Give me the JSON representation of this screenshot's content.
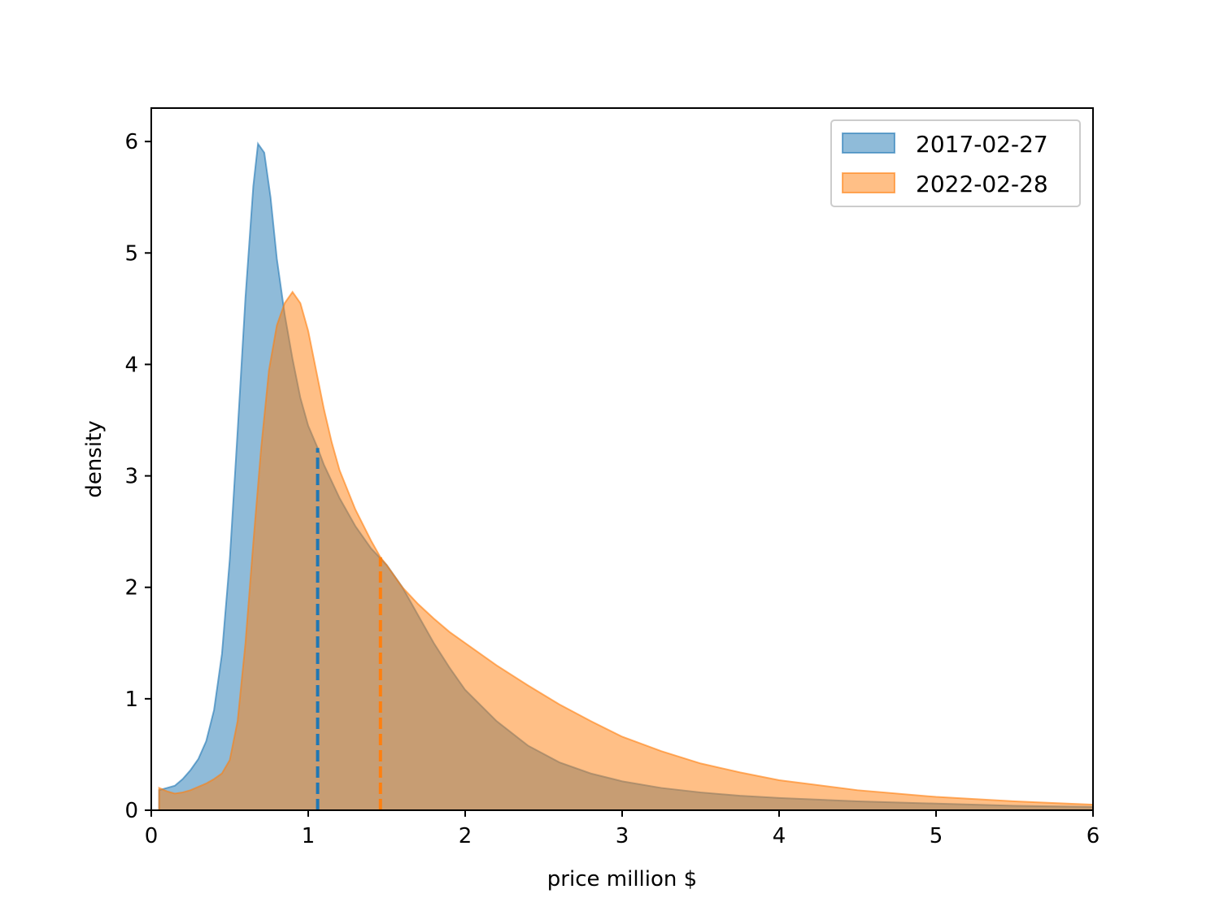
{
  "chart_data": {
    "type": "area",
    "title": "",
    "xlabel": "price million $",
    "ylabel": "density",
    "xlim": [
      0,
      6
    ],
    "ylim": [
      0,
      6.3
    ],
    "x_ticks": [
      0,
      1,
      2,
      3,
      4,
      5,
      6
    ],
    "y_ticks": [
      0,
      1,
      2,
      3,
      4,
      5,
      6
    ],
    "grid": false,
    "legend_position": "top-right",
    "series": [
      {
        "name": "2017-02-27",
        "color": "#1f77b4",
        "fill_alpha": 0.5,
        "points": [
          [
            0.05,
            0.18
          ],
          [
            0.1,
            0.2
          ],
          [
            0.15,
            0.22
          ],
          [
            0.2,
            0.28
          ],
          [
            0.25,
            0.36
          ],
          [
            0.3,
            0.46
          ],
          [
            0.35,
            0.62
          ],
          [
            0.4,
            0.9
          ],
          [
            0.45,
            1.4
          ],
          [
            0.5,
            2.25
          ],
          [
            0.55,
            3.4
          ],
          [
            0.6,
            4.6
          ],
          [
            0.65,
            5.6
          ],
          [
            0.68,
            5.98
          ],
          [
            0.72,
            5.9
          ],
          [
            0.76,
            5.5
          ],
          [
            0.8,
            4.95
          ],
          [
            0.85,
            4.45
          ],
          [
            0.9,
            4.05
          ],
          [
            0.95,
            3.7
          ],
          [
            1.0,
            3.45
          ],
          [
            1.06,
            3.25
          ],
          [
            1.1,
            3.1
          ],
          [
            1.2,
            2.8
          ],
          [
            1.3,
            2.55
          ],
          [
            1.4,
            2.35
          ],
          [
            1.5,
            2.2
          ],
          [
            1.6,
            2.0
          ],
          [
            1.7,
            1.75
          ],
          [
            1.8,
            1.5
          ],
          [
            1.9,
            1.28
          ],
          [
            2.0,
            1.08
          ],
          [
            2.2,
            0.8
          ],
          [
            2.4,
            0.58
          ],
          [
            2.6,
            0.43
          ],
          [
            2.8,
            0.33
          ],
          [
            3.0,
            0.26
          ],
          [
            3.25,
            0.2
          ],
          [
            3.5,
            0.16
          ],
          [
            3.75,
            0.13
          ],
          [
            4.0,
            0.11
          ],
          [
            4.5,
            0.08
          ],
          [
            5.0,
            0.06
          ],
          [
            5.5,
            0.04
          ],
          [
            6.0,
            0.03
          ]
        ]
      },
      {
        "name": "2022-02-28",
        "color": "#ff7f0e",
        "fill_alpha": 0.5,
        "points": [
          [
            0.05,
            0.2
          ],
          [
            0.1,
            0.17
          ],
          [
            0.15,
            0.15
          ],
          [
            0.2,
            0.16
          ],
          [
            0.25,
            0.18
          ],
          [
            0.3,
            0.21
          ],
          [
            0.35,
            0.24
          ],
          [
            0.4,
            0.28
          ],
          [
            0.45,
            0.33
          ],
          [
            0.5,
            0.45
          ],
          [
            0.55,
            0.8
          ],
          [
            0.6,
            1.5
          ],
          [
            0.65,
            2.4
          ],
          [
            0.7,
            3.25
          ],
          [
            0.75,
            3.95
          ],
          [
            0.8,
            4.35
          ],
          [
            0.85,
            4.55
          ],
          [
            0.9,
            4.65
          ],
          [
            0.95,
            4.55
          ],
          [
            1.0,
            4.3
          ],
          [
            1.05,
            3.95
          ],
          [
            1.1,
            3.6
          ],
          [
            1.15,
            3.3
          ],
          [
            1.2,
            3.05
          ],
          [
            1.3,
            2.7
          ],
          [
            1.4,
            2.42
          ],
          [
            1.46,
            2.27
          ],
          [
            1.5,
            2.2
          ],
          [
            1.6,
            2.0
          ],
          [
            1.7,
            1.85
          ],
          [
            1.8,
            1.72
          ],
          [
            1.9,
            1.6
          ],
          [
            2.0,
            1.5
          ],
          [
            2.2,
            1.3
          ],
          [
            2.4,
            1.12
          ],
          [
            2.6,
            0.95
          ],
          [
            2.8,
            0.8
          ],
          [
            3.0,
            0.66
          ],
          [
            3.25,
            0.53
          ],
          [
            3.5,
            0.42
          ],
          [
            3.75,
            0.34
          ],
          [
            4.0,
            0.27
          ],
          [
            4.5,
            0.18
          ],
          [
            5.0,
            0.12
          ],
          [
            5.5,
            0.08
          ],
          [
            6.0,
            0.05
          ]
        ]
      }
    ],
    "vlines": [
      {
        "series": "2017-02-27",
        "x": 1.06,
        "y_top": 3.25,
        "color": "#1f77b4",
        "style": "dashed"
      },
      {
        "series": "2022-02-28",
        "x": 1.46,
        "y_top": 2.27,
        "color": "#ff7f0e",
        "style": "dashed"
      }
    ]
  }
}
